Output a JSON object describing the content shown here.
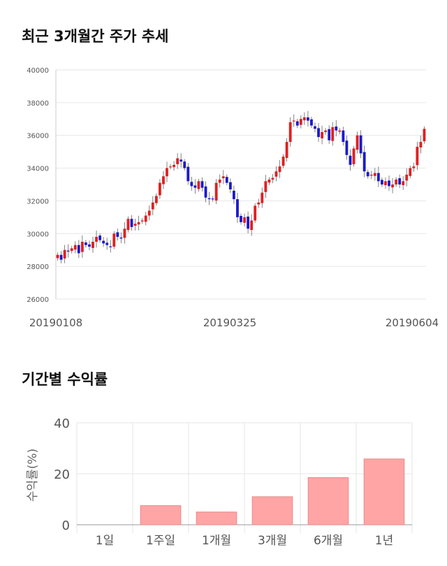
{
  "titles": {
    "stock_trend": "최근 3개월간 주가 추세",
    "period_returns": "기간별 수익률"
  },
  "colors": {
    "up": "#e02020",
    "down": "#1a1acc",
    "bar_fill": "#ffa5a5",
    "bar_stroke": "#e88a8a",
    "grid": "#e6e6e6"
  },
  "chart_data": [
    {
      "type": "candlestick",
      "title": "최근 3개월간 주가 추세",
      "ylim": [
        26000,
        40000
      ],
      "yticks": [
        26000,
        28000,
        30000,
        32000,
        34000,
        36000,
        38000,
        40000
      ],
      "xtick_labels": [
        "20190108",
        "20190325",
        "20190604"
      ],
      "close": [
        28700,
        28400,
        29000,
        28900,
        29100,
        29300,
        28800,
        29500,
        29300,
        29200,
        29500,
        29800,
        29600,
        29400,
        29300,
        29200,
        30000,
        29800,
        29700,
        30300,
        30900,
        30400,
        30600,
        30700,
        30800,
        31100,
        31400,
        31900,
        32300,
        33100,
        33500,
        34000,
        34100,
        34200,
        34600,
        34400,
        34000,
        33200,
        32900,
        32800,
        33200,
        32800,
        32200,
        32100,
        32100,
        33100,
        33300,
        33500,
        33100,
        32700,
        32100,
        31000,
        30700,
        31000,
        30300,
        30800,
        31700,
        31900,
        32500,
        33200,
        33300,
        33400,
        33800,
        34100,
        34700,
        35600,
        36800,
        36900,
        36600,
        37000,
        37100,
        36900,
        36600,
        36400,
        35900,
        36200,
        36300,
        35700,
        36500,
        36300,
        36300,
        35600,
        34800,
        34200,
        35200,
        36000,
        34900,
        33800,
        33500,
        33600,
        33700,
        33200,
        33000,
        33200,
        32900,
        33000,
        33300,
        33000,
        33200,
        33600,
        34000,
        34100,
        35300,
        35600,
        36400
      ],
      "bar_count": 105
    },
    {
      "type": "bar",
      "title": "기간별 수익률",
      "ylabel": "수익률(%)",
      "categories": [
        "1일",
        "1주일",
        "1개월",
        "3개월",
        "6개월",
        "1년"
      ],
      "values": [
        0,
        7.5,
        5.0,
        11.0,
        18.5,
        25.8
      ],
      "ylim": [
        0,
        40
      ],
      "yticks": [
        0,
        20,
        40
      ]
    }
  ]
}
